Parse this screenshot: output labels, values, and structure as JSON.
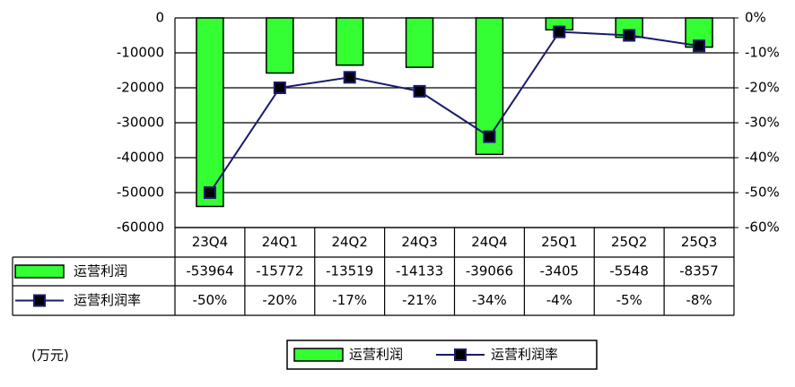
{
  "chart_data": {
    "type": "bar-line",
    "unit": "(万元)",
    "categories": [
      "23Q4",
      "24Q1",
      "24Q2",
      "24Q3",
      "24Q4",
      "25Q1",
      "25Q2",
      "25Q3"
    ],
    "series": [
      {
        "name": "运营利润",
        "color": "#33ff33",
        "type": "bar",
        "values": [
          -53964,
          -15772,
          -13519,
          -14133,
          -39066,
          -3405,
          -5548,
          -8357
        ]
      },
      {
        "name": "运营利润率",
        "color": "#1a1a6e",
        "type": "line",
        "axis": "y2",
        "values": [
          -50,
          -20,
          -17,
          -21,
          -34,
          -4,
          -5,
          -8
        ],
        "value_labels": [
          "-50%",
          "-20%",
          "-17%",
          "-21%",
          "-34%",
          "-4%",
          "-5%",
          "-8%"
        ]
      }
    ],
    "ylim": [
      -60000,
      0
    ],
    "yticks": [
      0,
      -10000,
      -20000,
      -30000,
      -40000,
      -50000,
      -60000
    ],
    "y2lim": [
      -60,
      0
    ],
    "y2ticks": [
      {
        "value": 0,
        "label": "0%"
      },
      {
        "value": -10,
        "label": "-10%"
      },
      {
        "value": -20,
        "label": "-20%"
      },
      {
        "value": -30,
        "label": "-30%"
      },
      {
        "value": -40,
        "label": "-40%"
      },
      {
        "value": -50,
        "label": "-50%"
      },
      {
        "value": -60,
        "label": "-60%"
      }
    ],
    "grid": true,
    "legend": "bottom"
  }
}
